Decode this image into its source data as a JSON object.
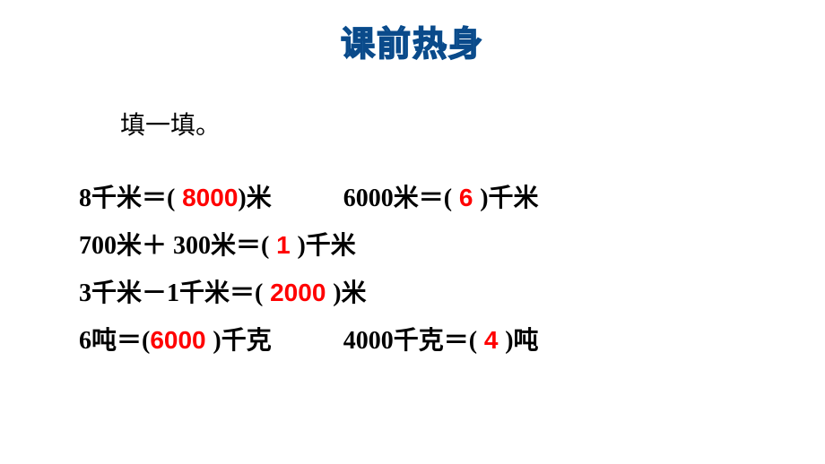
{
  "title": "课前热身",
  "subtitle": "填一填。",
  "lines": {
    "l1": {
      "p1a": "8千米＝(",
      "a1": " 8000",
      "p1b": ")米",
      "p2a": "6000米＝(",
      "a2": " 6  ",
      "p2b": ")千米"
    },
    "l2": {
      "p1a": "700米＋ 300米＝(",
      "a1": "   1   ",
      "p1b": ")千米"
    },
    "l3": {
      "p1a": "3千米－1千米＝(",
      "a1": " 2000 ",
      "p1b": ")米"
    },
    "l4": {
      "p1a": "6吨＝(",
      "a1": "6000 ",
      "p1b": ")千克",
      "p2a": "4000千克＝(",
      "a2": "  4  ",
      "p2b": ")吨"
    }
  },
  "colors": {
    "answer": "#ff0000",
    "text": "#000000",
    "background": "#ffffff",
    "title_gradient_top": "#7dd3ff",
    "title_gradient_bottom": "#2e7dbf",
    "title_stroke": "#0a4a8a"
  },
  "typography": {
    "title_fontsize": 38,
    "subtitle_fontsize": 28,
    "content_fontsize": 28,
    "line_height": 52
  }
}
